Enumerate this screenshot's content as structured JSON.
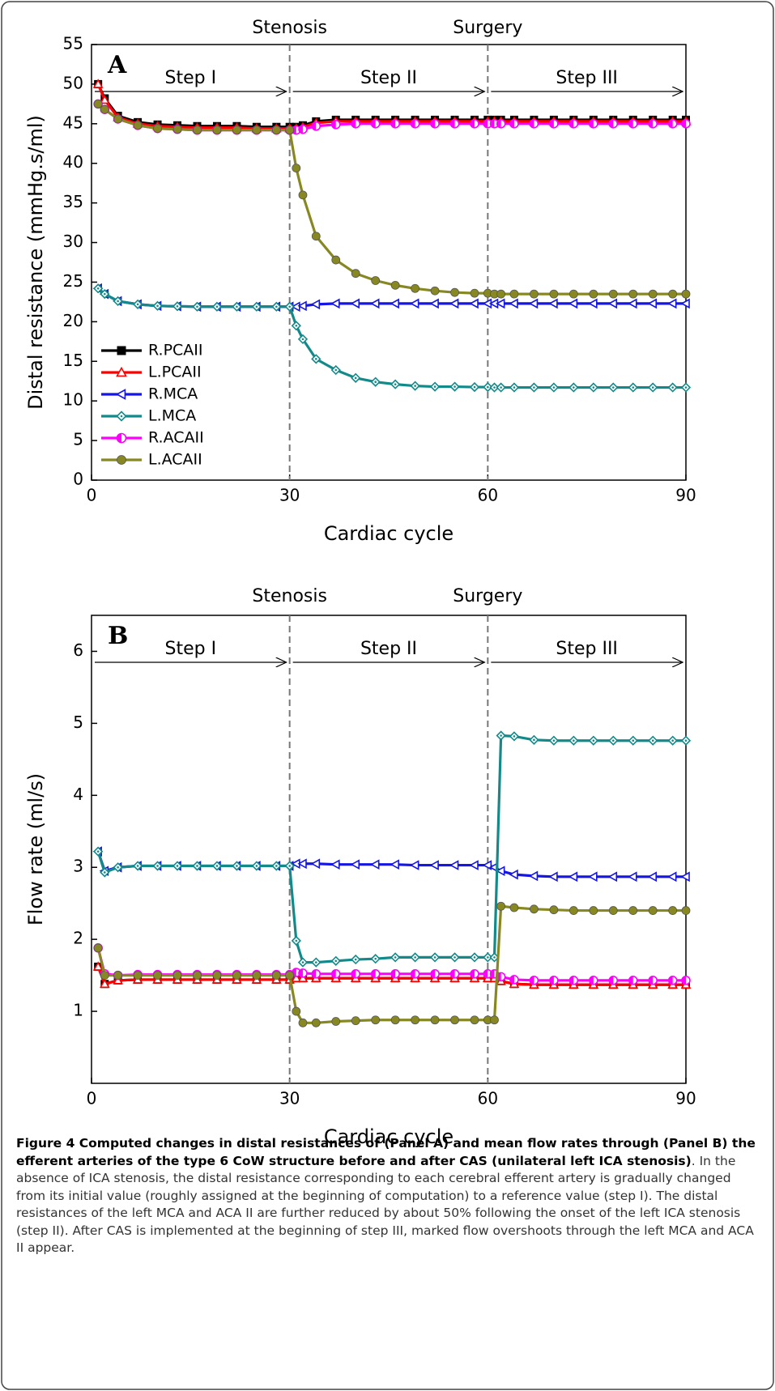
{
  "chart_data": [
    {
      "type": "line",
      "panel_label": "A",
      "xlabel": "Cardiac cycle",
      "ylabel": "Distal resistance (mmHg.s/ml)",
      "events": [
        {
          "x": 30,
          "label": "Stenosis"
        },
        {
          "x": 60,
          "label": "Surgery"
        }
      ],
      "steps": [
        "Step I",
        "Step II",
        "Step III"
      ],
      "xlim": [
        0,
        90
      ],
      "xticks": [
        0,
        30,
        60,
        90
      ],
      "ylim": [
        0,
        55
      ],
      "yticks": [
        0,
        5,
        10,
        15,
        20,
        25,
        30,
        35,
        40,
        45,
        50,
        55
      ],
      "legend": "lower left",
      "x": [
        1,
        2,
        4,
        7,
        10,
        13,
        16,
        19,
        22,
        25,
        28,
        30,
        31,
        32,
        34,
        37,
        40,
        43,
        46,
        49,
        52,
        55,
        58,
        60,
        61,
        62,
        64,
        67,
        70,
        73,
        76,
        79,
        82,
        85,
        88,
        90
      ],
      "series": [
        {
          "name": "R.PCAII",
          "color": "#000000",
          "marker": "square",
          "values": [
            50,
            48.2,
            46,
            45.2,
            44.9,
            44.8,
            44.7,
            44.7,
            44.7,
            44.6,
            44.6,
            44.6,
            44.6,
            44.8,
            45.3,
            45.5,
            45.5,
            45.5,
            45.5,
            45.5,
            45.5,
            45.5,
            45.5,
            45.5,
            45.5,
            45.5,
            45.5,
            45.5,
            45.5,
            45.5,
            45.5,
            45.5,
            45.5,
            45.5,
            45.5,
            45.5
          ]
        },
        {
          "name": "L.PCAII",
          "color": "#ff0000",
          "marker": "triangle",
          "values": [
            50,
            48,
            45.8,
            45,
            44.7,
            44.6,
            44.5,
            44.5,
            44.5,
            44.4,
            44.4,
            44.4,
            44.4,
            44.6,
            45.1,
            45.3,
            45.3,
            45.3,
            45.3,
            45.3,
            45.3,
            45.3,
            45.3,
            45.3,
            45.3,
            45.3,
            45.3,
            45.3,
            45.3,
            45.3,
            45.3,
            45.3,
            45.3,
            45.3,
            45.3,
            45.3
          ]
        },
        {
          "name": "R.MCA",
          "color": "#1515e6",
          "marker": "ltriangle",
          "values": [
            24.2,
            23.5,
            22.6,
            22.2,
            22,
            21.95,
            21.9,
            21.9,
            21.9,
            21.9,
            21.9,
            21.9,
            21.9,
            22,
            22.2,
            22.3,
            22.3,
            22.3,
            22.3,
            22.3,
            22.3,
            22.3,
            22.3,
            22.3,
            22.3,
            22.3,
            22.3,
            22.3,
            22.3,
            22.3,
            22.3,
            22.3,
            22.3,
            22.3,
            22.3,
            22.3
          ]
        },
        {
          "name": "L.MCA",
          "color": "#138a8a",
          "marker": "diamond",
          "values": [
            24.2,
            23.5,
            22.6,
            22.2,
            22,
            21.95,
            21.9,
            21.9,
            21.9,
            21.9,
            21.9,
            21.9,
            19.5,
            17.8,
            15.3,
            13.9,
            12.9,
            12.4,
            12.1,
            11.9,
            11.8,
            11.8,
            11.75,
            11.75,
            11.7,
            11.7,
            11.7,
            11.7,
            11.7,
            11.7,
            11.7,
            11.7,
            11.7,
            11.7,
            11.7,
            11.7
          ]
        },
        {
          "name": "R.ACAII",
          "color": "#ff00ff",
          "marker": "halfcircle",
          "values": [
            47.5,
            46.8,
            45.6,
            44.8,
            44.4,
            44.3,
            44.2,
            44.2,
            44.2,
            44.2,
            44.2,
            44.2,
            44.2,
            44.3,
            44.7,
            44.9,
            45,
            45,
            45,
            45,
            45,
            45,
            45,
            45,
            45,
            45,
            45,
            45,
            45,
            45,
            45,
            45,
            45,
            45,
            45,
            45
          ]
        },
        {
          "name": "L.ACAII",
          "color": "#888822",
          "marker": "circle",
          "values": [
            47.5,
            46.8,
            45.6,
            44.8,
            44.4,
            44.3,
            44.2,
            44.2,
            44.2,
            44.2,
            44.2,
            44.2,
            39.4,
            36,
            30.8,
            27.8,
            26.1,
            25.2,
            24.6,
            24.2,
            23.9,
            23.7,
            23.6,
            23.6,
            23.5,
            23.5,
            23.5,
            23.5,
            23.5,
            23.5,
            23.5,
            23.5,
            23.5,
            23.5,
            23.5,
            23.5
          ]
        }
      ]
    },
    {
      "type": "line",
      "panel_label": "B",
      "xlabel": "Cardiac cycle",
      "ylabel": "Flow rate (ml/s)",
      "events": [
        {
          "x": 30,
          "label": "Stenosis"
        },
        {
          "x": 60,
          "label": "Surgery"
        }
      ],
      "steps": [
        "Step I",
        "Step II",
        "Step III"
      ],
      "xlim": [
        0,
        90
      ],
      "xticks": [
        0,
        30,
        60,
        90
      ],
      "ylim": [
        0,
        6.5
      ],
      "yticks": [
        1,
        2,
        3,
        4,
        5,
        6
      ],
      "x": [
        1,
        2,
        4,
        7,
        10,
        13,
        16,
        19,
        22,
        25,
        28,
        30,
        31,
        32,
        34,
        37,
        40,
        43,
        46,
        49,
        52,
        55,
        58,
        60,
        61,
        62,
        64,
        67,
        70,
        73,
        76,
        79,
        82,
        85,
        88,
        90
      ],
      "series": [
        {
          "color": "#000000",
          "marker": "square",
          "values": [
            1.62,
            1.38,
            1.43,
            1.44,
            1.44,
            1.44,
            1.44,
            1.44,
            1.44,
            1.44,
            1.44,
            1.44,
            1.46,
            1.46,
            1.46,
            1.46,
            1.46,
            1.46,
            1.46,
            1.46,
            1.46,
            1.46,
            1.46,
            1.46,
            1.46,
            1.42,
            1.38,
            1.37,
            1.37,
            1.37,
            1.37,
            1.37,
            1.37,
            1.37,
            1.37,
            1.37
          ]
        },
        {
          "color": "#ff0000",
          "marker": "triangle",
          "values": [
            1.62,
            1.38,
            1.43,
            1.44,
            1.44,
            1.44,
            1.44,
            1.44,
            1.44,
            1.44,
            1.44,
            1.44,
            1.46,
            1.46,
            1.46,
            1.46,
            1.46,
            1.46,
            1.46,
            1.46,
            1.46,
            1.46,
            1.46,
            1.46,
            1.46,
            1.42,
            1.38,
            1.37,
            1.37,
            1.37,
            1.37,
            1.37,
            1.37,
            1.37,
            1.37,
            1.37
          ]
        },
        {
          "color": "#1515e6",
          "marker": "ltriangle",
          "values": [
            3.22,
            2.95,
            3.0,
            3.02,
            3.02,
            3.02,
            3.02,
            3.02,
            3.02,
            3.02,
            3.02,
            3.02,
            3.05,
            3.05,
            3.05,
            3.04,
            3.04,
            3.04,
            3.04,
            3.03,
            3.03,
            3.03,
            3.03,
            3.03,
            3.0,
            2.95,
            2.9,
            2.88,
            2.87,
            2.87,
            2.87,
            2.87,
            2.87,
            2.87,
            2.87,
            2.87
          ]
        },
        {
          "color": "#138a8a",
          "marker": "diamond",
          "values": [
            3.22,
            2.93,
            3.0,
            3.02,
            3.02,
            3.02,
            3.02,
            3.02,
            3.02,
            3.02,
            3.02,
            3.02,
            1.98,
            1.68,
            1.68,
            1.7,
            1.72,
            1.73,
            1.75,
            1.75,
            1.75,
            1.75,
            1.75,
            1.75,
            1.75,
            4.83,
            4.82,
            4.77,
            4.76,
            4.76,
            4.76,
            4.76,
            4.76,
            4.76,
            4.76,
            4.76
          ]
        },
        {
          "color": "#ff00ff",
          "marker": "halfcircle",
          "values": [
            1.88,
            1.52,
            1.5,
            1.51,
            1.51,
            1.51,
            1.51,
            1.51,
            1.51,
            1.51,
            1.51,
            1.51,
            1.54,
            1.53,
            1.52,
            1.52,
            1.52,
            1.52,
            1.52,
            1.52,
            1.52,
            1.52,
            1.52,
            1.52,
            1.52,
            1.48,
            1.44,
            1.43,
            1.43,
            1.43,
            1.43,
            1.43,
            1.43,
            1.43,
            1.43,
            1.43
          ]
        },
        {
          "color": "#888822",
          "marker": "circle",
          "values": [
            1.88,
            1.5,
            1.5,
            1.5,
            1.5,
            1.5,
            1.5,
            1.5,
            1.5,
            1.5,
            1.5,
            1.5,
            1.0,
            0.84,
            0.84,
            0.86,
            0.87,
            0.88,
            0.88,
            0.88,
            0.88,
            0.88,
            0.88,
            0.88,
            0.88,
            2.46,
            2.44,
            2.42,
            2.41,
            2.4,
            2.4,
            2.4,
            2.4,
            2.4,
            2.4,
            2.4
          ]
        }
      ]
    }
  ],
  "caption": {
    "bold": "Figure 4 Computed changes in distal resistances of (Panel A) and mean flow rates through (Panel B) the efferent arteries of the type 6 CoW structure before and after CAS (unilateral left ICA stenosis)",
    "text": ". In the absence of ICA stenosis, the distal resistance corresponding to each cerebral efferent artery is gradually changed from its initial value (roughly assigned at the beginning of computation) to a reference value (step I). The distal resistances of the left MCA and ACA II are further reduced by about 50% following the onset of the left ICA stenosis (step II). After CAS is implemented at the beginning of step III, marked flow overshoots through the left MCA and ACA II appear."
  }
}
